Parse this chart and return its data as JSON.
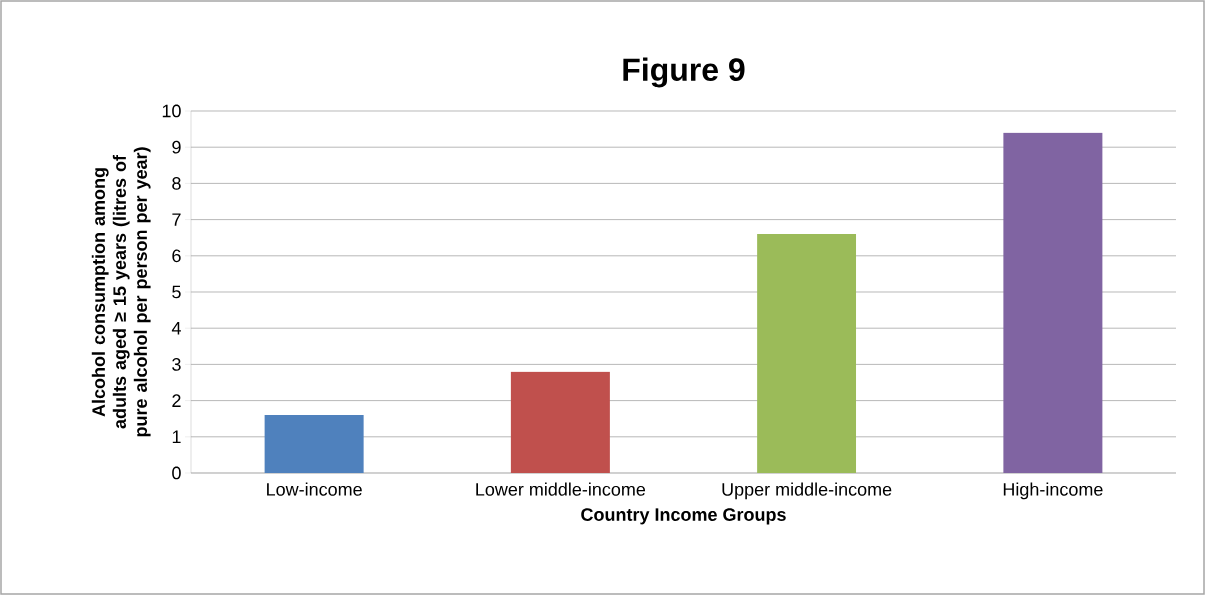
{
  "chart_data": {
    "type": "bar",
    "title": "Figure 9",
    "xlabel": "Country Income Groups",
    "ylabel": "Alcohol consumption among adults aged ≥ 15 years (litres of pure alcohol per person per year)",
    "categories": [
      "Low-income",
      "Lower middle-income",
      "Upper middle-income",
      "High-income"
    ],
    "values": [
      1.6,
      2.8,
      6.6,
      9.4
    ],
    "colors": [
      "#4f81bd",
      "#c0504d",
      "#9bbb59",
      "#8064a2"
    ],
    "ylim": [
      0,
      10
    ],
    "yticks": [
      0,
      1,
      2,
      3,
      4,
      5,
      6,
      7,
      8,
      9,
      10
    ],
    "grid": "y"
  }
}
